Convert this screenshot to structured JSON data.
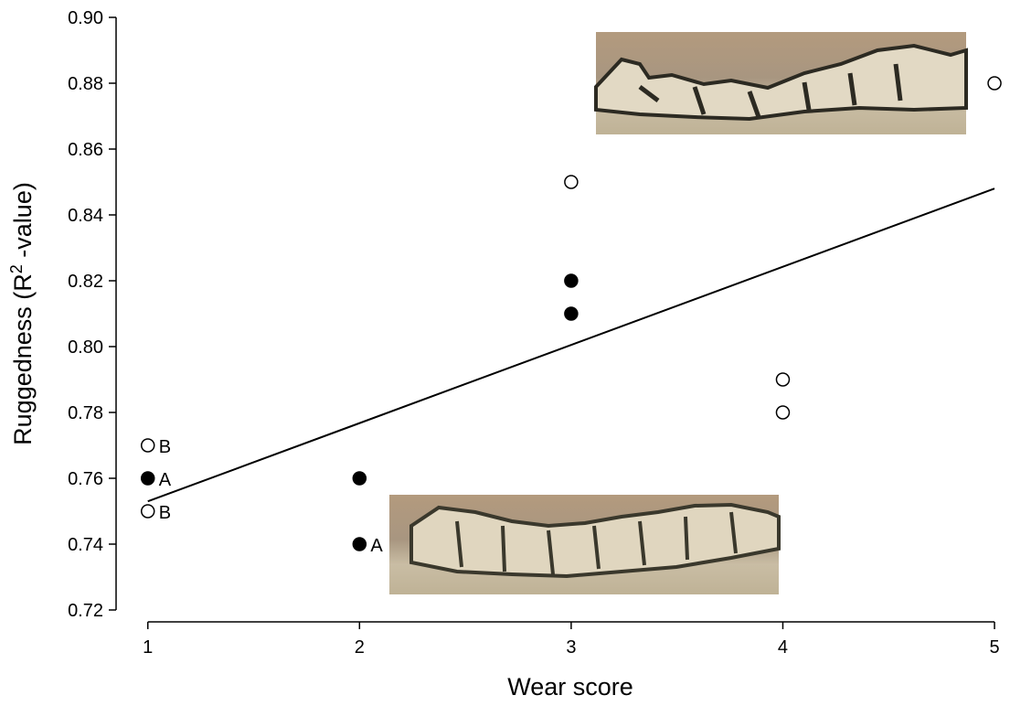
{
  "chart_data": {
    "type": "scatter",
    "x_label": "Wear score",
    "y_label": {
      "text": "Ruggedness (R",
      "sup": "2",
      "rest": " -value)"
    },
    "xlim": [
      0.85,
      5.03
    ],
    "xticks": [
      1,
      2,
      3,
      4,
      5
    ],
    "ylim": [
      0.72,
      0.9
    ],
    "yticks": [
      0.72,
      0.74,
      0.76,
      0.78,
      {
        "value": 0.8,
        "label": "0.80"
      },
      0.82,
      0.84,
      0.86,
      0.88,
      {
        "value": 0.9,
        "label": "0.90"
      }
    ],
    "series": [
      {
        "color": "#000000",
        "filled": true,
        "x": [
          1,
          2,
          2,
          3,
          3
        ],
        "values": [
          0.76,
          0.76,
          0.74,
          0.82,
          0.81
        ],
        "labels": [
          "A",
          null,
          "A",
          null,
          null
        ]
      },
      {
        "color": "#000000",
        "filled": false,
        "x": [
          1,
          1,
          3,
          4,
          4,
          5
        ],
        "values": [
          0.77,
          0.75,
          0.85,
          0.79,
          0.78,
          0.88
        ],
        "labels": [
          "B",
          "B",
          null,
          null,
          null,
          null
        ]
      }
    ],
    "trend": {
      "type": "line",
      "color": "#000000",
      "x": [
        1,
        5
      ],
      "values": [
        0.753,
        0.848
      ]
    }
  }
}
